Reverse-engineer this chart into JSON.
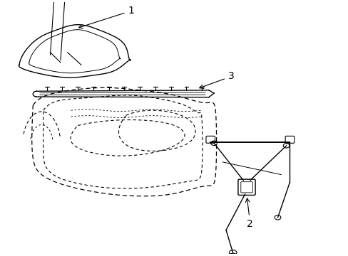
{
  "background_color": "#ffffff",
  "line_color": "#000000",
  "label_1": "1",
  "label_2": "2",
  "label_3": "3",
  "fig_width": 4.89,
  "fig_height": 3.6,
  "dpi": 100
}
